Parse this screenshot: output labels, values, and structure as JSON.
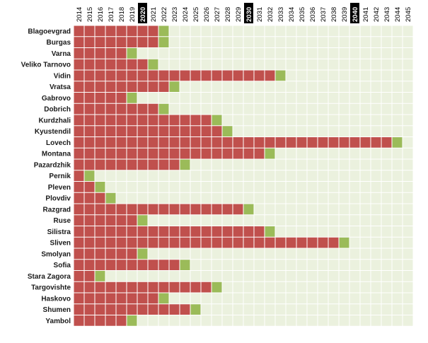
{
  "colors": {
    "filled": "#c0504d",
    "transition": "#9bbb59",
    "empty": "#ebf1de",
    "gridline": "#ffffff",
    "highlight_header_bg": "#000000",
    "highlight_header_text": "#ffffff",
    "header_text": "#000000",
    "label_text": "#1a1a1a"
  },
  "chart_data": {
    "type": "heatmap",
    "title": "",
    "xlabel": "",
    "ylabel": "",
    "x": [
      "2014",
      "2015",
      "2016",
      "2017",
      "2018",
      "2019",
      "2020",
      "2021",
      "2022",
      "2023",
      "2024",
      "2025",
      "2026",
      "2027",
      "2028",
      "2029",
      "2030",
      "2031",
      "2032",
      "2033",
      "2034",
      "2035",
      "2036",
      "2037",
      "2038",
      "2039",
      "2040",
      "2041",
      "2042",
      "2043",
      "2044",
      "2045"
    ],
    "highlighted_years": [
      "2020",
      "2030",
      "2040"
    ],
    "legend": "none",
    "grid": true,
    "cell_states": {
      "filled": "red cells from 2014 through the year before the transition year",
      "transition": "green cell at the transition year",
      "empty": "light cells after the transition year"
    },
    "rows": [
      {
        "label": "Blagoevgrad",
        "transition_year": 2022
      },
      {
        "label": "Burgas",
        "transition_year": 2022
      },
      {
        "label": "Varna",
        "transition_year": 2019
      },
      {
        "label": "Veliko Tarnovo",
        "transition_year": 2021
      },
      {
        "label": "Vidin",
        "transition_year": 2033
      },
      {
        "label": "Vratsa",
        "transition_year": 2023
      },
      {
        "label": "Gabrovo",
        "transition_year": 2019
      },
      {
        "label": "Dobrich",
        "transition_year": 2022
      },
      {
        "label": "Kurdzhali",
        "transition_year": 2027
      },
      {
        "label": "Kyustendil",
        "transition_year": 2028
      },
      {
        "label": "Lovech",
        "transition_year": 2044
      },
      {
        "label": "Montana",
        "transition_year": 2032
      },
      {
        "label": "Pazardzhik",
        "transition_year": 2024
      },
      {
        "label": "Pernik",
        "transition_year": 2015
      },
      {
        "label": "Pleven",
        "transition_year": 2016
      },
      {
        "label": "Plovdiv",
        "transition_year": 2017
      },
      {
        "label": "Razgrad",
        "transition_year": 2030
      },
      {
        "label": "Ruse",
        "transition_year": 2020
      },
      {
        "label": "Silistra",
        "transition_year": 2032
      },
      {
        "label": "Sliven",
        "transition_year": 2039
      },
      {
        "label": "Smolyan",
        "transition_year": 2020
      },
      {
        "label": "Sofia",
        "transition_year": 2024
      },
      {
        "label": "Stara Zagora",
        "transition_year": 2016
      },
      {
        "label": "Targovishte",
        "transition_year": 2027
      },
      {
        "label": "Haskovo",
        "transition_year": 2022
      },
      {
        "label": "Shumen",
        "transition_year": 2025
      },
      {
        "label": "Yambol",
        "transition_year": 2019
      }
    ]
  }
}
